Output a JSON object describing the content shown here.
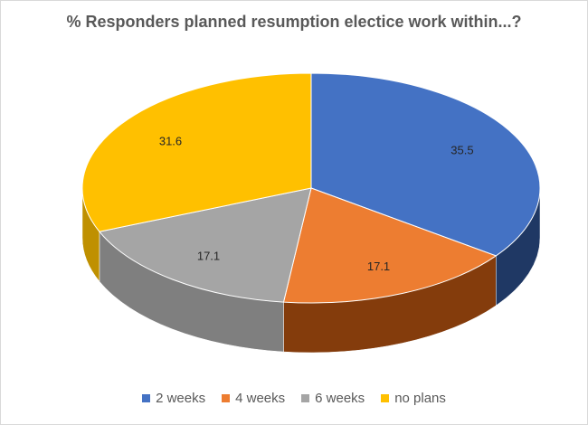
{
  "chart_data": {
    "type": "pie",
    "title": "% Responders planned resumption electice work within...?",
    "categories": [
      "2 weeks",
      "4 weeks",
      "6 weeks",
      "no plans"
    ],
    "values": [
      35.5,
      17.1,
      17.1,
      31.6
    ],
    "data_labels": [
      "35.5",
      "17.1",
      "17.1",
      "31.6"
    ],
    "colors": [
      "#4472C4",
      "#ED7D31",
      "#A5A5A5",
      "#FFC000"
    ],
    "side_colors": [
      "#1F3864",
      "#843C0C",
      "#7F7F7F",
      "#BF9000"
    ],
    "legend_position": "bottom",
    "style": "3d"
  }
}
